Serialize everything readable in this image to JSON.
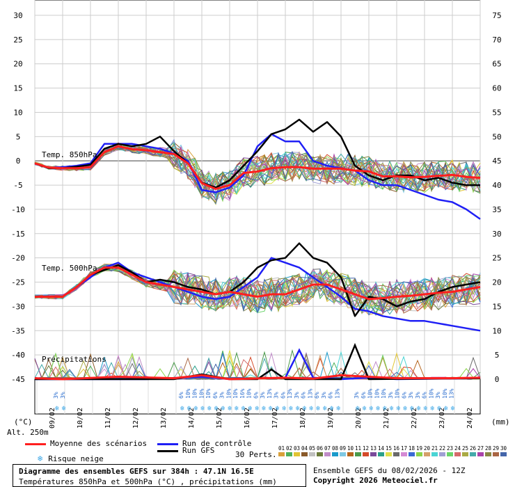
{
  "chart_data": {
    "type": "line",
    "title": "Diagramme des ensembles GEFS sur 384h : 47.1N 16.5E",
    "subtitle": "Températures 850hPa et 500hPa (°C) , précipitations (mm)",
    "run_info": "Ensemble GEFS du 08/02/2026 - 12Z",
    "copyright": "Copyright 2026 Meteociel.fr",
    "left_axis_unit": "(°C)",
    "right_axis_unit": "(mm)",
    "altitude_label": "Alt. 250m",
    "left_ticks": [
      30,
      25,
      20,
      15,
      10,
      5,
      0,
      -5,
      -10,
      -15,
      -20,
      -25,
      -30,
      -35,
      -40,
      -45
    ],
    "right_ticks": [
      75,
      70,
      65,
      60,
      55,
      50,
      45,
      40,
      35,
      30,
      25,
      20,
      15,
      10,
      5,
      0
    ],
    "x_labels": [
      "09/02",
      "10/02",
      "11/02",
      "12/02",
      "13/02",
      "14/02",
      "15/02",
      "16/02",
      "17/02",
      "18/02",
      "19/02",
      "20/02",
      "21/02",
      "22/02",
      "23/02",
      "24/02"
    ],
    "section_labels": {
      "t850": "Temp. 850hPa",
      "t500": "Temp. 500hPa",
      "precip": "Précipitations"
    },
    "snow_risk_pct": [
      {
        "day": 1.0,
        "values": [
          "3%",
          "3%"
        ]
      },
      {
        "day": 5.5,
        "values": [
          "6%",
          "10%",
          "10%",
          "10%",
          "10%",
          "6%",
          "3%",
          "10%",
          "10%",
          "16%",
          "10%",
          "6%",
          "3%",
          "13%",
          "3%",
          "6%",
          "13%",
          "3%",
          "6%",
          "13%",
          "6%",
          "3%",
          "6%",
          "13%"
        ]
      },
      {
        "day": 11.8,
        "values": [
          "3%",
          "6%",
          "10%",
          "10%",
          "10%",
          "3%",
          "10%",
          "6%",
          "3%",
          "3%",
          "6%",
          "10%",
          "3%",
          "10%",
          "13%"
        ]
      }
    ],
    "series": [
      {
        "name": "Moyenne des scénarios",
        "color": "#ff1f1f",
        "t850": [
          [
            0,
            -0.5
          ],
          [
            0.5,
            -1.4
          ],
          [
            1,
            -1.5
          ],
          [
            1.5,
            -1.5
          ],
          [
            2,
            -1.3
          ],
          [
            2.5,
            1.8
          ],
          [
            3,
            3.0
          ],
          [
            3.5,
            2.4
          ],
          [
            4,
            2.2
          ],
          [
            4.5,
            1.8
          ],
          [
            5,
            1.4
          ],
          [
            5.5,
            -0.5
          ],
          [
            6,
            -4.6
          ],
          [
            6.5,
            -5.8
          ],
          [
            7,
            -5.0
          ],
          [
            7.5,
            -2.5
          ],
          [
            8,
            -2.2
          ],
          [
            8.5,
            -1.5
          ],
          [
            9,
            -1.3
          ],
          [
            9.5,
            -1.3
          ],
          [
            10,
            -1.6
          ],
          [
            10.5,
            -1.6
          ],
          [
            11,
            -1.6
          ],
          [
            11.5,
            -2.0
          ],
          [
            12,
            -2.2
          ],
          [
            12.5,
            -3.2
          ],
          [
            13,
            -3.2
          ],
          [
            13.5,
            -3.4
          ],
          [
            14,
            -3.3
          ],
          [
            14.5,
            -3.1
          ],
          [
            15,
            -2.9
          ],
          [
            15.5,
            -3.3
          ],
          [
            16,
            -3.5
          ]
        ],
        "t500": [
          [
            0,
            -28
          ],
          [
            0.5,
            -28
          ],
          [
            1,
            -28
          ],
          [
            1.5,
            -26
          ],
          [
            2,
            -23.5
          ],
          [
            2.5,
            -22
          ],
          [
            3,
            -22
          ],
          [
            3.5,
            -23.5
          ],
          [
            4,
            -25
          ],
          [
            4.5,
            -25.5
          ],
          [
            5,
            -26
          ],
          [
            5.5,
            -26.5
          ],
          [
            6,
            -27
          ],
          [
            6.5,
            -27.5
          ],
          [
            7,
            -27
          ],
          [
            7.5,
            -27.5
          ],
          [
            8,
            -28
          ],
          [
            8.5,
            -27.5
          ],
          [
            9,
            -27.5
          ],
          [
            9.5,
            -26.5
          ],
          [
            10,
            -25.5
          ],
          [
            10.5,
            -25.5
          ],
          [
            11,
            -26.5
          ],
          [
            11.5,
            -27.5
          ],
          [
            12,
            -28.5
          ],
          [
            12.5,
            -28.3
          ],
          [
            13,
            -28
          ],
          [
            13.5,
            -27.8
          ],
          [
            14,
            -27.5
          ],
          [
            14.5,
            -27.2
          ],
          [
            15,
            -27
          ],
          [
            15.5,
            -26.5
          ],
          [
            16,
            -26
          ]
        ],
        "precip": [
          [
            0,
            0.2
          ],
          [
            1,
            0.0
          ],
          [
            3,
            0.5
          ],
          [
            5,
            0.2
          ],
          [
            6,
            0.8
          ],
          [
            7,
            0.0
          ],
          [
            9,
            0.3
          ],
          [
            10,
            0.1
          ],
          [
            11,
            0.8
          ],
          [
            12,
            0.5
          ],
          [
            13,
            0.2
          ],
          [
            14,
            0.2
          ],
          [
            15,
            0.2
          ],
          [
            16,
            0.3
          ]
        ]
      },
      {
        "name": "Run de contrôle",
        "color": "#1f1ff5",
        "t850": [
          [
            0,
            -0.5
          ],
          [
            0.5,
            -1.5
          ],
          [
            1,
            -1.3
          ],
          [
            1.5,
            -1.0
          ],
          [
            2,
            -0.5
          ],
          [
            2.5,
            3.5
          ],
          [
            3,
            3.5
          ],
          [
            3.5,
            3.5
          ],
          [
            4,
            3.0
          ],
          [
            4.5,
            2.5
          ],
          [
            5,
            1.5
          ],
          [
            5.5,
            0
          ],
          [
            6,
            -6
          ],
          [
            6.5,
            -6.5
          ],
          [
            7,
            -5.5
          ],
          [
            7.5,
            -3
          ],
          [
            8,
            3
          ],
          [
            8.5,
            5.5
          ],
          [
            9,
            4
          ],
          [
            9.5,
            4
          ],
          [
            10,
            0
          ],
          [
            10.5,
            -1
          ],
          [
            11,
            -1.5
          ],
          [
            11.5,
            -2
          ],
          [
            12,
            -4
          ],
          [
            12.5,
            -5
          ],
          [
            13,
            -5
          ],
          [
            13.5,
            -6
          ],
          [
            14,
            -7
          ],
          [
            14.5,
            -8
          ],
          [
            15,
            -8.5
          ],
          [
            15.5,
            -10
          ],
          [
            16,
            -12
          ]
        ],
        "t500": [
          [
            0,
            -28
          ],
          [
            0.5,
            -28
          ],
          [
            1,
            -28
          ],
          [
            1.5,
            -26
          ],
          [
            2,
            -24
          ],
          [
            2.5,
            -22
          ],
          [
            3,
            -21
          ],
          [
            3.5,
            -23
          ],
          [
            4,
            -24
          ],
          [
            4.5,
            -25
          ],
          [
            5,
            -26
          ],
          [
            5.5,
            -27
          ],
          [
            6,
            -28
          ],
          [
            6.5,
            -28.5
          ],
          [
            7,
            -28
          ],
          [
            7.5,
            -26
          ],
          [
            8,
            -24
          ],
          [
            8.5,
            -20
          ],
          [
            9,
            -21
          ],
          [
            9.5,
            -22
          ],
          [
            10,
            -24
          ],
          [
            10.5,
            -26
          ],
          [
            11,
            -28
          ],
          [
            11.5,
            -30.5
          ],
          [
            12,
            -31
          ],
          [
            12.5,
            -32
          ],
          [
            13,
            -32.5
          ],
          [
            13.5,
            -33
          ],
          [
            14,
            -33
          ],
          [
            14.5,
            -33.5
          ],
          [
            15,
            -34
          ],
          [
            15.5,
            -34.5
          ],
          [
            16,
            -35
          ]
        ],
        "precip": [
          [
            0,
            0
          ],
          [
            4,
            0
          ],
          [
            6,
            0.5
          ],
          [
            7,
            0
          ],
          [
            9,
            0.3
          ],
          [
            9.5,
            6
          ],
          [
            10,
            0.3
          ],
          [
            11,
            0
          ],
          [
            12,
            0.3
          ],
          [
            13,
            0
          ],
          [
            16,
            0.2
          ]
        ]
      },
      {
        "name": "Run GFS",
        "color": "#000000",
        "t850": [
          [
            0,
            -0.5
          ],
          [
            0.5,
            -1.5
          ],
          [
            1,
            -1.5
          ],
          [
            1.5,
            -1.2
          ],
          [
            2,
            -0.8
          ],
          [
            2.5,
            2.5
          ],
          [
            3,
            3.5
          ],
          [
            3.5,
            3.0
          ],
          [
            4,
            3.5
          ],
          [
            4.5,
            5.0
          ],
          [
            5,
            2.0
          ],
          [
            5.5,
            -0.5
          ],
          [
            6,
            -4.5
          ],
          [
            6.5,
            -5.5
          ],
          [
            7,
            -4.0
          ],
          [
            7.5,
            -1.0
          ],
          [
            8,
            2.0
          ],
          [
            8.5,
            5.5
          ],
          [
            9,
            6.5
          ],
          [
            9.5,
            8.5
          ],
          [
            10,
            6
          ],
          [
            10.5,
            8
          ],
          [
            11,
            5
          ],
          [
            11.5,
            -1
          ],
          [
            12,
            -3
          ],
          [
            12.5,
            -4
          ],
          [
            13,
            -3
          ],
          [
            13.5,
            -3
          ],
          [
            14,
            -4
          ],
          [
            14.5,
            -3.5
          ],
          [
            15,
            -4.5
          ],
          [
            15.5,
            -5
          ],
          [
            16,
            -5
          ]
        ],
        "t500": [
          [
            0,
            -28
          ],
          [
            0.5,
            -28
          ],
          [
            1,
            -28
          ],
          [
            1.5,
            -26
          ],
          [
            2,
            -23.5
          ],
          [
            2.5,
            -22.5
          ],
          [
            3,
            -21.5
          ],
          [
            3.5,
            -23
          ],
          [
            4,
            -25
          ],
          [
            4.5,
            -24.5
          ],
          [
            5,
            -25
          ],
          [
            5.5,
            -26
          ],
          [
            6,
            -26.5
          ],
          [
            6.5,
            -27.5
          ],
          [
            7,
            -27
          ],
          [
            7.5,
            -25
          ],
          [
            8,
            -22
          ],
          [
            8.5,
            -20.5
          ],
          [
            9,
            -20
          ],
          [
            9.5,
            -17
          ],
          [
            10,
            -20
          ],
          [
            10.5,
            -21
          ],
          [
            11,
            -24
          ],
          [
            11.5,
            -32
          ],
          [
            12,
            -28
          ],
          [
            12.5,
            -28.5
          ],
          [
            13,
            -30
          ],
          [
            13.5,
            -29
          ],
          [
            14,
            -28.5
          ],
          [
            14.5,
            -27
          ],
          [
            15,
            -26
          ],
          [
            15.5,
            -25.5
          ],
          [
            16,
            -25
          ]
        ],
        "precip": [
          [
            0,
            0
          ],
          [
            5,
            0
          ],
          [
            6,
            1.0
          ],
          [
            7,
            0
          ],
          [
            8,
            0
          ],
          [
            8.5,
            2
          ],
          [
            9,
            0
          ],
          [
            11,
            0
          ],
          [
            11.5,
            7
          ],
          [
            12,
            0
          ],
          [
            16,
            0.2
          ]
        ]
      }
    ],
    "perturbation_colors": [
      "#d9a03a",
      "#4fb05a",
      "#e0c432",
      "#8a5a2a",
      "#c0c0c0",
      "#6a7a3a",
      "#c08cc8",
      "#1a9acb",
      "#7ec8e3",
      "#b5651d",
      "#4a9a4a",
      "#d44a2a",
      "#7a4a9a",
      "#2aa08a",
      "#e0e04a",
      "#6a6a6a",
      "#d48ad4",
      "#3a6ad4",
      "#8ad44a",
      "#d4a06a",
      "#4ad4d4",
      "#a0a0d4",
      "#6ad46a",
      "#d46a6a",
      "#aaaa44",
      "#44aaaa",
      "#aa44aa",
      "#888844",
      "#aa6644",
      "#4466aa"
    ]
  },
  "legend": {
    "mean": "Moyenne des scénarios",
    "control": "Run de contrôle",
    "gfs": "Run GFS",
    "snow": "Risque neige",
    "perts_label": "30 Perts.",
    "pert_numbers": [
      "01",
      "02",
      "03",
      "04",
      "05",
      "06",
      "07",
      "08",
      "09",
      "10",
      "11",
      "12",
      "13",
      "14",
      "15",
      "16",
      "17",
      "18",
      "19",
      "20",
      "21",
      "22",
      "23",
      "24",
      "25",
      "26",
      "27",
      "28",
      "29",
      "30"
    ]
  }
}
